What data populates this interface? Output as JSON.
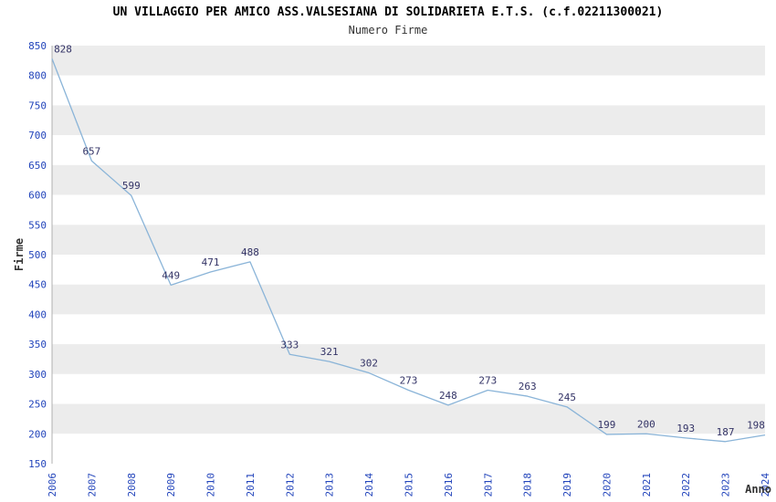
{
  "page": {
    "title": "UN VILLAGGIO PER AMICO ASS.VALSESIANA DI SOLIDARIETA E.T.S. (c.f.02211300021)",
    "subtitle": "Numero Firme"
  },
  "chart_data": {
    "type": "line",
    "title": "UN VILLAGGIO PER AMICO ASS.VALSESIANA DI SOLIDARIETA E.T.S. (c.f.02211300021)",
    "subtitle": "Numero Firme",
    "xlabel": "Anno",
    "ylabel": "Firme",
    "categories": [
      "2006",
      "2007",
      "2008",
      "2009",
      "2010",
      "2011",
      "2012",
      "2013",
      "2014",
      "2015",
      "2016",
      "2017",
      "2018",
      "2019",
      "2020",
      "2021",
      "2022",
      "2023",
      "2024"
    ],
    "values": [
      828,
      657,
      599,
      449,
      471,
      488,
      333,
      321,
      302,
      273,
      248,
      273,
      263,
      245,
      199,
      200,
      193,
      187,
      198
    ],
    "ylim": [
      150,
      850
    ],
    "ytick_step": 50,
    "grid": "alternating-horizontal-bands",
    "legend": "none",
    "data_labels": true,
    "colors": {
      "line": "#8ab4d8",
      "band": "#ececec",
      "band_alt": "#ffffff",
      "axis_line": "#b0b0b0",
      "tick_label": "#2244bb",
      "data_label": "#333366",
      "axis_label": "#333333",
      "title": "#000000"
    }
  }
}
